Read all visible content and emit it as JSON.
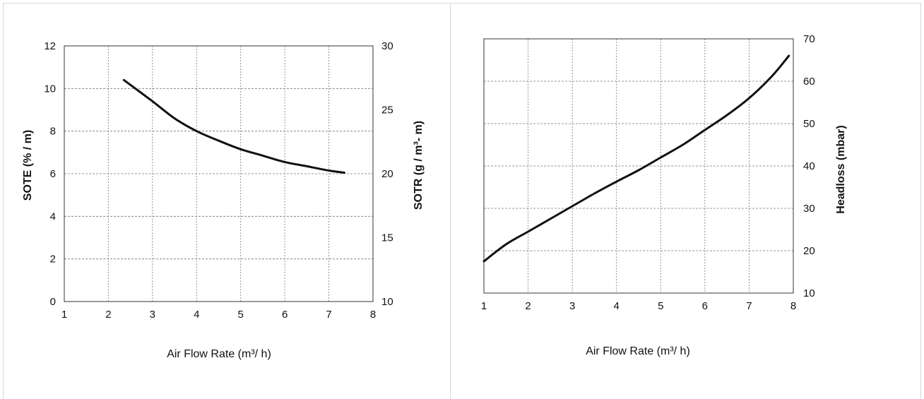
{
  "chart_data": [
    {
      "type": "line",
      "xlabel": "Air Flow Rate (m³/ h)",
      "ylabel": "SOTE (% / m)",
      "y2label": "SOTR (g / m³- m)",
      "xlim": [
        1,
        8
      ],
      "ylim": [
        0,
        12
      ],
      "y2lim": [
        10,
        30
      ],
      "xticks": [
        "1",
        "2",
        "3",
        "4",
        "5",
        "6",
        "7",
        "8"
      ],
      "yticks": [
        "0",
        "2",
        "4",
        "6",
        "8",
        "10",
        "12"
      ],
      "y2ticks": [
        "10",
        "15",
        "20",
        "25",
        "30"
      ],
      "grid": true,
      "series": [
        {
          "x": [
            2.35,
            3.0,
            3.5,
            4.0,
            4.5,
            5.0,
            5.5,
            6.0,
            6.5,
            7.0,
            7.35
          ],
          "y": [
            10.4,
            9.4,
            8.6,
            8.0,
            7.55,
            7.15,
            6.85,
            6.55,
            6.35,
            6.15,
            6.05
          ]
        }
      ]
    },
    {
      "type": "line",
      "xlabel": "Air Flow Rate (m³/ h)",
      "ylabel": "Headloss (mbar)",
      "xlim": [
        1,
        8
      ],
      "ylim": [
        10,
        70
      ],
      "xticks": [
        "1",
        "2",
        "3",
        "4",
        "5",
        "6",
        "7",
        "8"
      ],
      "yticks": [
        "10",
        "20",
        "30",
        "40",
        "50",
        "60",
        "70"
      ],
      "grid": true,
      "series": [
        {
          "x": [
            1.0,
            1.5,
            2.0,
            2.5,
            3.0,
            3.5,
            4.0,
            4.5,
            5.0,
            5.5,
            6.0,
            6.5,
            7.0,
            7.5,
            7.9
          ],
          "y": [
            17.5,
            21.5,
            24.5,
            27.5,
            30.5,
            33.5,
            36.3,
            39.0,
            42.0,
            45.0,
            48.5,
            52.0,
            56.0,
            61.0,
            66.0
          ]
        }
      ]
    }
  ]
}
